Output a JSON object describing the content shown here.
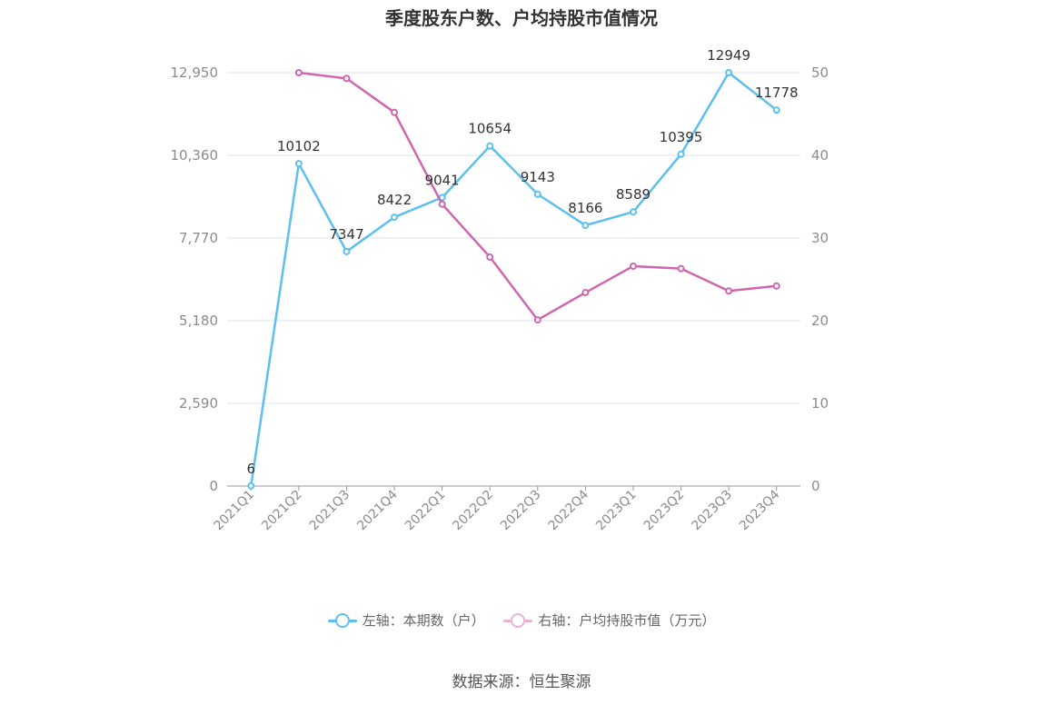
{
  "title": "季度股东户数、户均持股市值情况",
  "source": "数据来源：恒生聚源",
  "colors": {
    "left_series": "#5bc0f0",
    "right_series": "#d066ae",
    "grid": "#dde6f0",
    "axis": "#999999"
  },
  "chart_data": {
    "type": "line",
    "title": "季度股东户数、户均持股市值情况",
    "categories": [
      "2021Q1",
      "2021Q2",
      "2021Q3",
      "2021Q4",
      "2022Q1",
      "2022Q2",
      "2022Q3",
      "2022Q4",
      "2023Q1",
      "2023Q2",
      "2023Q3",
      "2023Q4"
    ],
    "left_axis": {
      "ticks": [
        "0",
        "2,590",
        "5,180",
        "7,770",
        "10,360",
        "12,950"
      ],
      "ylim": [
        0,
        12950
      ]
    },
    "right_axis": {
      "ticks": [
        "0",
        "10",
        "20",
        "30",
        "40",
        "50"
      ],
      "ylim": [
        0,
        50
      ]
    },
    "series": [
      {
        "name": "左轴：本期数（户）",
        "axis": "left",
        "values": [
          6,
          10102,
          7347,
          8422,
          9041,
          10654,
          9143,
          8166,
          8589,
          10395,
          12949,
          11778
        ],
        "labels": [
          "6",
          "10102",
          "7347",
          "8422",
          "9041",
          "10654",
          "9143",
          "8166",
          "8589",
          "10395",
          "12949",
          "11778"
        ]
      },
      {
        "name": "右轴：户均持股市值（万元）",
        "axis": "right",
        "values": [
          null,
          50.0,
          49.3,
          45.2,
          34.1,
          27.7,
          20.1,
          23.4,
          26.6,
          26.3,
          23.6,
          24.2
        ]
      }
    ],
    "grid": true,
    "legend": "bottom"
  }
}
